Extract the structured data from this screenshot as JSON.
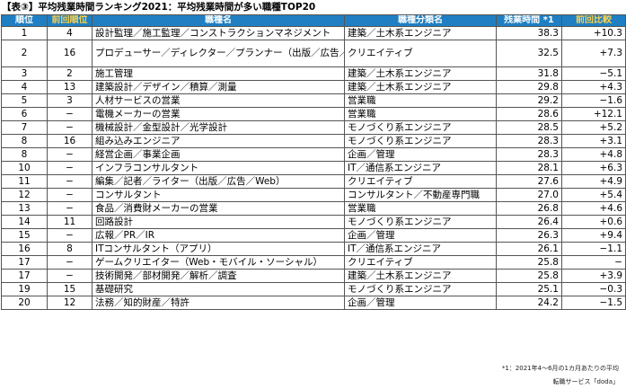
{
  "title": "【表③】平均残業時間ランキング2021：平均残業時間が多い職種TOP20",
  "headers": {
    "rank": "順位",
    "prev_rank": "前回順位",
    "job": "職種名",
    "category": "職種分類名",
    "hours": "残業時間 *1",
    "diff": "前回比較"
  },
  "rows": [
    {
      "rank": "1",
      "prev": "4",
      "job": "設計監理／施工監理／コンストラクションマネジメント",
      "category": "建築／土木系エンジニア",
      "hours": "38.3",
      "diff": "+10.3"
    },
    {
      "rank": "2",
      "prev": "16",
      "job": "プロデューサー／ディレクター／プランナー（出版／広告／Web／映像関連）",
      "category": "クリエイティブ",
      "hours": "32.5",
      "diff": "+7.3"
    },
    {
      "rank": "3",
      "prev": "2",
      "job": "施工管理",
      "category": "建築／土木系エンジニア",
      "hours": "31.8",
      "diff": "−5.1"
    },
    {
      "rank": "4",
      "prev": "13",
      "job": "建築設計／デザイン／積算／測量",
      "category": "建築／土木系エンジニア",
      "hours": "29.8",
      "diff": "+4.3"
    },
    {
      "rank": "5",
      "prev": "3",
      "job": "人材サービスの営業",
      "category": "営業職",
      "hours": "29.2",
      "diff": "−1.6"
    },
    {
      "rank": "6",
      "prev": "−",
      "job": "電機メーカーの営業",
      "category": "営業職",
      "hours": "28.6",
      "diff": "+12.1"
    },
    {
      "rank": "7",
      "prev": "−",
      "job": "機械設計／金型設計／光学設計",
      "category": "モノづくり系エンジニア",
      "hours": "28.5",
      "diff": "+5.2"
    },
    {
      "rank": "8",
      "prev": "16",
      "job": "組み込みエンジニア",
      "category": "モノづくり系エンジニア",
      "hours": "28.3",
      "diff": "+3.1"
    },
    {
      "rank": "8",
      "prev": "−",
      "job": "経営企画／事業企画",
      "category": "企画／管理",
      "hours": "28.3",
      "diff": "+4.8"
    },
    {
      "rank": "10",
      "prev": "−",
      "job": "インフラコンサルタント",
      "category": "IT／通信系エンジニア",
      "hours": "28.1",
      "diff": "+6.3"
    },
    {
      "rank": "11",
      "prev": "−",
      "job": "編集／記者／ライター（出版／広告／Web）",
      "category": "クリエイティブ",
      "hours": "27.6",
      "diff": "+4.9"
    },
    {
      "rank": "12",
      "prev": "−",
      "job": "コンサルタント",
      "category": "コンサルタント／不動産専門職",
      "hours": "27.0",
      "diff": "+5.4"
    },
    {
      "rank": "13",
      "prev": "−",
      "job": "食品／消費財メーカーの営業",
      "category": "営業職",
      "hours": "26.8",
      "diff": "+4.6"
    },
    {
      "rank": "14",
      "prev": "11",
      "job": "回路設計",
      "category": "モノづくり系エンジニア",
      "hours": "26.4",
      "diff": "+0.6"
    },
    {
      "rank": "15",
      "prev": "−",
      "job": "広報／PR／IR",
      "category": "企画／管理",
      "hours": "26.3",
      "diff": "+9.4"
    },
    {
      "rank": "16",
      "prev": "8",
      "job": "ITコンサルタント（アプリ）",
      "category": "IT／通信系エンジニア",
      "hours": "26.1",
      "diff": "−1.1"
    },
    {
      "rank": "17",
      "prev": "−",
      "job": "ゲームクリエイター（Web・モバイル・ソーシャル）",
      "category": "クリエイティブ",
      "hours": "25.8",
      "diff": "−"
    },
    {
      "rank": "17",
      "prev": "−",
      "job": "技術開発／部材開発／解析／調査",
      "category": "建築／土木系エンジニア",
      "hours": "25.8",
      "diff": "+3.9"
    },
    {
      "rank": "19",
      "prev": "15",
      "job": "基礎研究",
      "category": "モノづくり系エンジニア",
      "hours": "25.1",
      "diff": "−0.3"
    },
    {
      "rank": "20",
      "prev": "12",
      "job": "法務／知的財産／特許",
      "category": "企画／管理",
      "hours": "24.2",
      "diff": "−1.5"
    }
  ],
  "footnote1": "*1：2021年4〜6月の1カ月あたりの平均",
  "footnote2": "転職サービス「doda」",
  "colors": {
    "header_bg": "#1f7fc2",
    "header_text": "#ffffff",
    "header_highlight": "#ffd24a"
  }
}
